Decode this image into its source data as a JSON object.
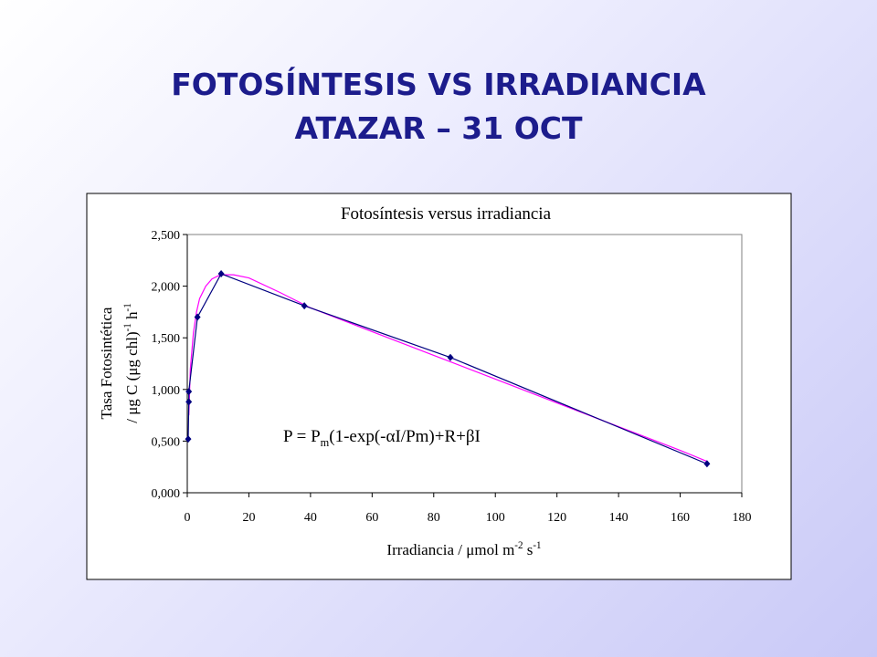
{
  "slide_title": [
    "FOTOSÍNTESIS VS IRRADIANCIA",
    "ATAZAR – 31 OCT"
  ],
  "chart_data": {
    "type": "line",
    "title": "Fotosíntesis versus irradiancia",
    "xlabel": [
      "Irradiancia / μmol m",
      "-2",
      " s",
      "-1"
    ],
    "ylabel": [
      [
        "Tasa Fotosintética"
      ],
      [
        "/ μg C (μg chl)",
        "-1",
        " h",
        "-1"
      ]
    ],
    "annotation": [
      "P = P",
      "m",
      "(1-exp(-αI/Pm)+R+βI"
    ],
    "xlim": [
      0,
      180
    ],
    "xticks": [
      0,
      20,
      40,
      60,
      80,
      100,
      120,
      140,
      160,
      180
    ],
    "ylim": [
      0,
      2.5
    ],
    "yticks": [
      {
        "value": 0,
        "label": "0,000"
      },
      {
        "value": 0.5,
        "label": "0,500"
      },
      {
        "value": 1,
        "label": "1,000"
      },
      {
        "value": 1.5,
        "label": "1,500"
      },
      {
        "value": 2,
        "label": "2,000"
      },
      {
        "value": 2.5,
        "label": "2,500"
      }
    ],
    "grid": false,
    "series": [
      {
        "color": "#000080",
        "marker": "diamond",
        "x": [
          0.3,
          0.5,
          0.5,
          3.3,
          11,
          38,
          85.4,
          168.7
        ],
        "values": [
          0.52,
          0.88,
          0.98,
          1.7,
          2.12,
          1.81,
          1.31,
          0.28
        ]
      },
      {
        "color": "#ff00ff",
        "x": [
          0.5,
          1,
          2,
          3,
          4,
          6,
          8,
          10,
          12,
          15,
          20,
          30,
          40,
          60,
          80,
          100,
          120,
          140,
          160,
          169
        ],
        "values": [
          0.75,
          1.2,
          1.55,
          1.75,
          1.88,
          2.0,
          2.07,
          2.1,
          2.11,
          2.11,
          2.08,
          1.94,
          1.79,
          1.56,
          1.33,
          1.1,
          0.87,
          0.64,
          0.41,
          0.3
        ]
      }
    ]
  }
}
